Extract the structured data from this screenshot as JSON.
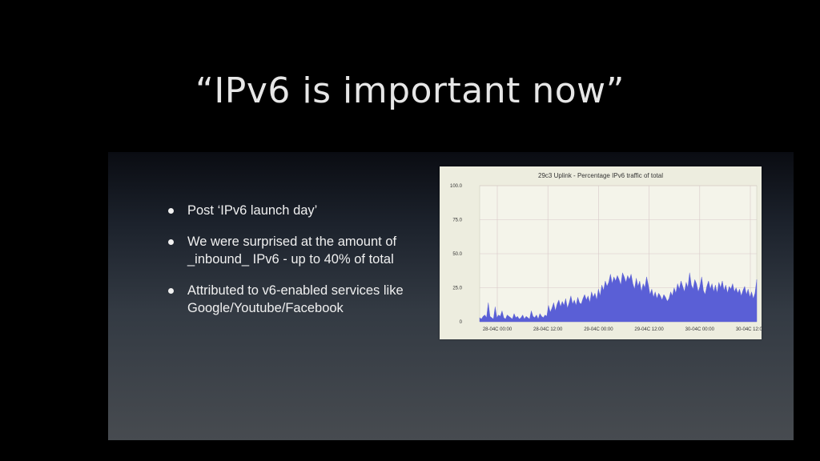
{
  "slide": {
    "title": "“IPv6 is important now”",
    "bullets": [
      {
        "lines": [
          "Post ‘IPv6 launch day’"
        ]
      },
      {
        "lines": [
          "We were surprised at the amount of",
          "_inbound_ IPv6 - up to 40% of total"
        ]
      },
      {
        "lines": [
          "Attributed to v6-enabled services like",
          "Google/Youtube/Facebook"
        ]
      }
    ]
  },
  "chart_data": {
    "type": "area",
    "title": "29c3 Uplink - Percentage IPv6 traffic of total",
    "xlabel": "",
    "ylabel": "",
    "ylim": [
      0,
      100
    ],
    "y_ticks": [
      "0",
      "25.0",
      "50.0",
      "75.0",
      "100.0"
    ],
    "y_tick_values": [
      0,
      25,
      50,
      75,
      100
    ],
    "x_ticks": [
      "28-04C 00:00",
      "28-04C 12:00",
      "29-04C 00:00",
      "29-04C 12:00",
      "30-04C 00:00",
      "30-04C 12:00"
    ],
    "grid": true,
    "series_color": "#5a5fd6",
    "series": [
      {
        "values": [
          3,
          2,
          4,
          5,
          3,
          14,
          4,
          3,
          2,
          11,
          3,
          5,
          4,
          8,
          3,
          2,
          5,
          4,
          3,
          2,
          6,
          3,
          4,
          2,
          3,
          5,
          2,
          4,
          3,
          2,
          8,
          4,
          3,
          5,
          2,
          6,
          4,
          3,
          5,
          4,
          12,
          7,
          10,
          14,
          8,
          13,
          16,
          11,
          15,
          12,
          17,
          10,
          14,
          19,
          13,
          16,
          12,
          18,
          14,
          13,
          17,
          20,
          16,
          19,
          14,
          22,
          18,
          21,
          16,
          24,
          19,
          27,
          23,
          30,
          26,
          29,
          35,
          28,
          33,
          30,
          34,
          31,
          27,
          36,
          33,
          29,
          34,
          31,
          35,
          28,
          24,
          32,
          26,
          30,
          22,
          28,
          25,
          33,
          27,
          20,
          24,
          18,
          22,
          17,
          21,
          19,
          16,
          20,
          18,
          15,
          17,
          22,
          19,
          25,
          21,
          28,
          24,
          30,
          26,
          22,
          29,
          25,
          36,
          27,
          24,
          31,
          28,
          22,
          26,
          33,
          23,
          20,
          26,
          30,
          24,
          28,
          22,
          27,
          21,
          29,
          25,
          30,
          23,
          27,
          21,
          26,
          24,
          28,
          22,
          25,
          21,
          24,
          19,
          23,
          26,
          20,
          24,
          18,
          22,
          17,
          21,
          31
        ]
      }
    ]
  }
}
